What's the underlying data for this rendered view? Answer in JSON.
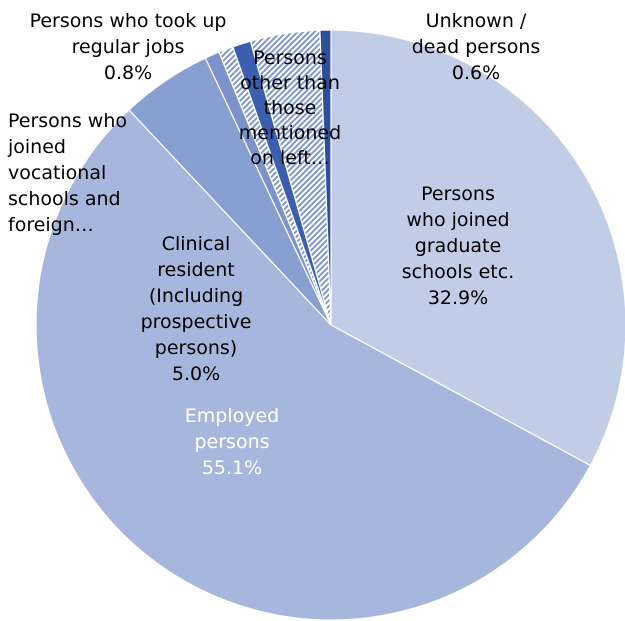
{
  "chart_data": {
    "type": "pie",
    "start": "12 o'clock",
    "direction": "clockwise",
    "slices": [
      {
        "lines": [
          "Persons",
          "who joined",
          "graduate",
          "schools etc."
        ],
        "value": 32.9,
        "value_label": "32.9%",
        "color": "#c1cce7"
      },
      {
        "lines": [
          "Employed",
          "persons"
        ],
        "value": 55.1,
        "value_label": "55.1%",
        "color": "#a7b6dc",
        "label_color": "#ffffff"
      },
      {
        "lines": [
          "Clinical",
          "resident",
          "(Including",
          "prospective",
          "persons)"
        ],
        "value": 5.0,
        "value_label": "5.0%",
        "color": "#889fd2"
      },
      {
        "lines": [
          "Persons who",
          "joined",
          "vocational",
          "schools and",
          "foreign…"
        ],
        "value": 0.8,
        "value_label": "",
        "color": "#7b92cc"
      },
      {
        "lines": [
          "Persons who took up",
          "regular jobs"
        ],
        "value": 0.8,
        "value_label": "0.8%",
        "color": "#b5c3e4",
        "pattern": "hatch"
      },
      {
        "lines": [],
        "value": 1.0,
        "value_label": "",
        "color": "#3b5fae"
      },
      {
        "lines": [
          "Persons",
          "other than",
          "those",
          "mentioned",
          "on left…"
        ],
        "value": 3.8,
        "value_label": "",
        "color": "#c5d0ea",
        "pattern": "hatch"
      },
      {
        "lines": [
          "Unknown /",
          "dead persons"
        ],
        "value": 0.6,
        "value_label": "0.6%",
        "color": "#2e4f9a"
      }
    ]
  }
}
